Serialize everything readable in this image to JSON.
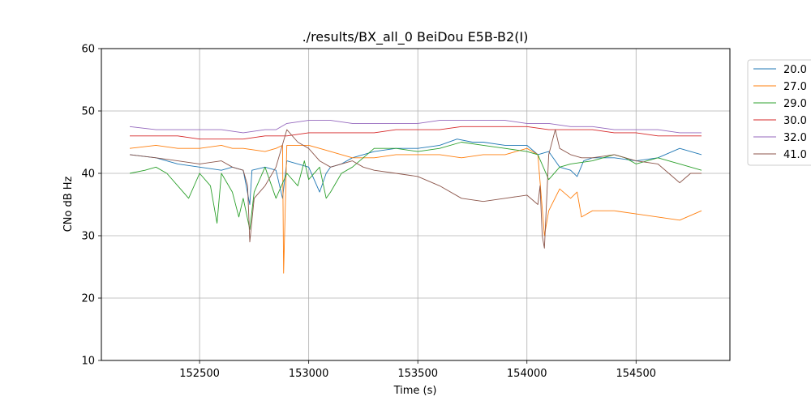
{
  "chart_data": {
    "type": "line",
    "title": "./results/BX_all_0 BeiDou E5B-B2(I)",
    "xlabel": "Time (s)",
    "ylabel": "CNo dB Hz",
    "xlim": [
      152050,
      154930
    ],
    "ylim": [
      10,
      60
    ],
    "xticks": [
      152500,
      153000,
      153500,
      154000,
      154500
    ],
    "yticks": [
      10,
      20,
      30,
      40,
      50,
      60
    ],
    "grid": true,
    "legend_position": "outside-right",
    "series": [
      {
        "name": "20.0",
        "color": "#1f77b4",
        "x": [
          152180,
          152300,
          152400,
          152500,
          152600,
          152650,
          152700,
          152730,
          152740,
          152800,
          152850,
          152880,
          152900,
          152950,
          153000,
          153050,
          153080,
          153100,
          153150,
          153200,
          153300,
          153400,
          153500,
          153600,
          153680,
          153750,
          153800,
          153900,
          154000,
          154050,
          154100,
          154150,
          154200,
          154230,
          154260,
          154300,
          154400,
          154500,
          154600,
          154700,
          154800
        ],
        "y": [
          43,
          42.5,
          41.5,
          41,
          40.5,
          41,
          40.5,
          35,
          40.5,
          41,
          40.5,
          36,
          42,
          41.5,
          41,
          37,
          40,
          41,
          41.5,
          42.5,
          43.5,
          44,
          44,
          44.5,
          45.5,
          45,
          45,
          44.5,
          44.5,
          43,
          43.5,
          41,
          40.5,
          39.5,
          42,
          42.5,
          42.5,
          42,
          42.5,
          44,
          43
        ]
      },
      {
        "name": "27.0",
        "color": "#ff7f0e",
        "x": [
          152180,
          152300,
          152400,
          152500,
          152600,
          152650,
          152700,
          152800,
          152850,
          152880,
          152885,
          152900,
          152950,
          153000,
          153050,
          153100,
          153150,
          153200,
          153300,
          153400,
          153500,
          153600,
          153700,
          153800,
          153900,
          154000,
          154050,
          154080,
          154100,
          154150,
          154200,
          154230,
          154250,
          154300,
          154400,
          154500,
          154600,
          154700,
          154800
        ],
        "y": [
          44,
          44.5,
          44,
          44,
          44.5,
          44,
          44,
          43.5,
          44,
          44.5,
          24,
          44.5,
          44.5,
          44.5,
          44,
          43.5,
          43,
          42.5,
          42.5,
          43,
          43,
          43,
          42.5,
          43,
          43,
          44,
          43,
          30,
          34,
          37.5,
          36,
          37,
          33,
          34,
          34,
          33.5,
          33,
          32.5,
          34
        ]
      },
      {
        "name": "29.0",
        "color": "#2ca02c",
        "x": [
          152180,
          152250,
          152300,
          152350,
          152400,
          152450,
          152500,
          152550,
          152580,
          152600,
          152650,
          152680,
          152700,
          152730,
          152750,
          152800,
          152850,
          152900,
          152950,
          152980,
          153000,
          153050,
          153080,
          153100,
          153150,
          153200,
          153300,
          153400,
          153500,
          153600,
          153700,
          153800,
          153900,
          154000,
          154050,
          154100,
          154150,
          154200,
          154300,
          154400,
          154450,
          154500,
          154600,
          154700,
          154800
        ],
        "y": [
          40,
          40.5,
          41,
          40,
          38,
          36,
          40,
          38,
          32,
          40,
          37,
          33,
          36,
          31,
          37,
          41,
          36,
          40,
          38,
          42,
          39,
          41,
          36,
          37,
          40,
          41,
          44,
          44,
          43.5,
          44,
          45,
          44.5,
          44,
          43.5,
          43,
          39,
          41,
          41.5,
          42,
          43,
          42.5,
          41.5,
          42.5,
          41.5,
          40.5
        ]
      },
      {
        "name": "30.0",
        "color": "#d62728",
        "x": [
          152180,
          152300,
          152400,
          152500,
          152600,
          152700,
          152800,
          152900,
          153000,
          153100,
          153200,
          153300,
          153400,
          153500,
          153600,
          153700,
          153800,
          153900,
          154000,
          154100,
          154200,
          154300,
          154400,
          154500,
          154600,
          154700,
          154800
        ],
        "y": [
          46,
          46,
          46,
          45.5,
          45.5,
          45.5,
          46,
          46,
          46.5,
          46.5,
          46.5,
          46.5,
          47,
          47,
          47,
          47.5,
          47.5,
          47.5,
          47.5,
          47,
          47,
          47,
          46.5,
          46.5,
          46,
          46,
          46
        ]
      },
      {
        "name": "32.0",
        "color": "#9467bd",
        "x": [
          152180,
          152300,
          152400,
          152500,
          152600,
          152700,
          152800,
          152850,
          152900,
          153000,
          153100,
          153200,
          153300,
          153400,
          153500,
          153600,
          153700,
          153800,
          153900,
          154000,
          154100,
          154200,
          154300,
          154400,
          154500,
          154600,
          154700,
          154800
        ],
        "y": [
          47.5,
          47,
          47,
          47,
          47,
          46.5,
          47,
          47,
          48,
          48.5,
          48.5,
          48,
          48,
          48,
          48,
          48.5,
          48.5,
          48.5,
          48.5,
          48,
          48,
          47.5,
          47.5,
          47,
          47,
          47,
          46.5,
          46.5
        ]
      },
      {
        "name": "41.0",
        "color": "#8c564b",
        "x": [
          152180,
          152300,
          152400,
          152500,
          152600,
          152650,
          152700,
          152720,
          152730,
          152750,
          152800,
          152850,
          152900,
          152950,
          153000,
          153050,
          153100,
          153200,
          153250,
          153300,
          153400,
          153500,
          153600,
          153700,
          153800,
          153900,
          154000,
          154050,
          154060,
          154070,
          154080,
          154100,
          154130,
          154150,
          154200,
          154250,
          154300,
          154400,
          154500,
          154600,
          154700,
          154750,
          154800
        ],
        "y": [
          43,
          42.5,
          42,
          41.5,
          42,
          41,
          40.5,
          38,
          29,
          36,
          38,
          41,
          47,
          45,
          44,
          42,
          41,
          42,
          41,
          40.5,
          40,
          39.5,
          38,
          36,
          35.5,
          36,
          36.5,
          35,
          38,
          30,
          28,
          43,
          47,
          44,
          43,
          42.5,
          42.5,
          43,
          42,
          41.5,
          38.5,
          40,
          40
        ]
      }
    ]
  }
}
